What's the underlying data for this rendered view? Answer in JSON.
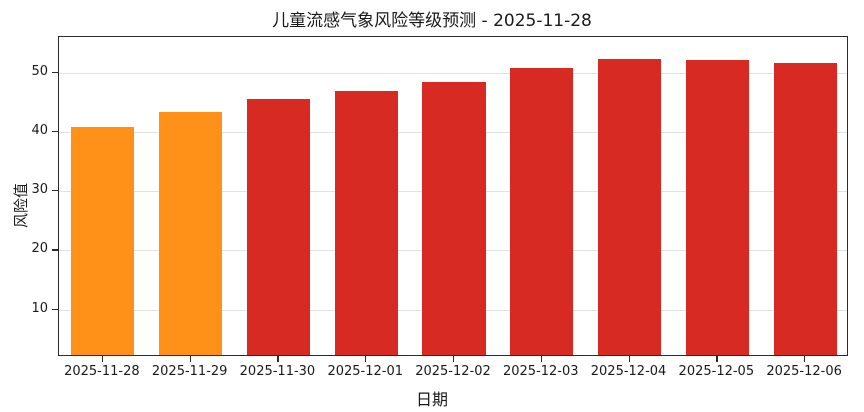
{
  "chart_data": {
    "type": "bar",
    "title": "儿童流感气象风险等级预测 - 2025-11-28",
    "xlabel": "日期",
    "ylabel": "风险值",
    "categories": [
      "2025-11-28",
      "2025-11-29",
      "2025-11-30",
      "2025-12-01",
      "2025-12-02",
      "2025-12-03",
      "2025-12-04",
      "2025-12-05",
      "2025-12-06"
    ],
    "values": [
      40.5,
      43.0,
      45.2,
      46.6,
      48.0,
      50.5,
      52.0,
      51.7,
      51.2
    ],
    "bar_colors": [
      "#ff9018",
      "#ff9018",
      "#d62a23",
      "#d62a23",
      "#d62a23",
      "#d62a23",
      "#d62a23",
      "#d62a23",
      "#d62a23"
    ],
    "ylim": [
      2,
      56
    ],
    "yticks": [
      10,
      20,
      30,
      40,
      50
    ],
    "grid": "horizontal",
    "legend": "none",
    "colors": {
      "orange_risk": "#ff9018",
      "red_risk": "#d62a23",
      "grid": "#e2e2e2",
      "spine": "#2b2b2b"
    }
  }
}
